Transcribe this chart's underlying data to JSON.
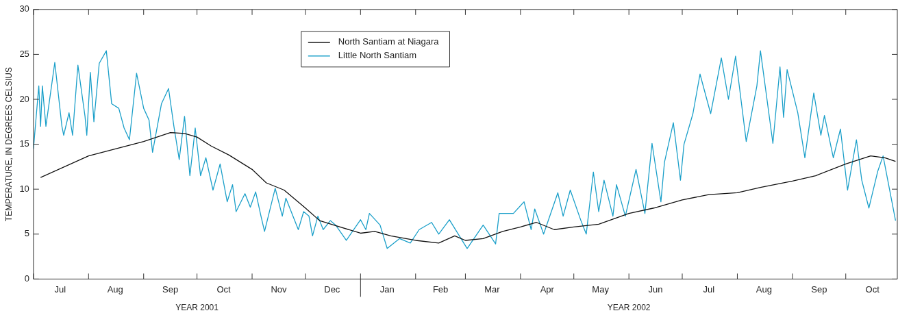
{
  "chart_data": {
    "type": "line",
    "ylabel": "TEMPERATURE, IN DEGREES CELSIUS",
    "legend": "top",
    "xlim": [
      "2001-07-01",
      "2002-10-30"
    ],
    "ylim": [
      0,
      30
    ],
    "yticks": [
      0,
      5,
      10,
      15,
      20,
      25,
      30
    ],
    "xticks": [
      {
        "value": "2001-07-01",
        "label": null
      },
      {
        "value": "2001-07-16",
        "label": "Jul"
      },
      {
        "value": "2001-08-01",
        "label": null
      },
      {
        "value": "2001-08-16",
        "label": "Aug"
      },
      {
        "value": "2001-09-01",
        "label": null
      },
      {
        "value": "2001-09-16",
        "label": "Sep"
      },
      {
        "value": "2001-10-01",
        "label": null
      },
      {
        "value": "2001-10-16",
        "label": "Oct"
      },
      {
        "value": "2001-11-01",
        "label": null
      },
      {
        "value": "2001-11-16",
        "label": "Nov"
      },
      {
        "value": "2001-12-01",
        "label": null
      },
      {
        "value": "2001-12-16",
        "label": "Dec"
      },
      {
        "value": "2002-01-01",
        "label": null
      },
      {
        "value": "2002-01-16",
        "label": "Jan"
      },
      {
        "value": "2002-02-01",
        "label": null
      },
      {
        "value": "2002-02-15",
        "label": "Feb"
      },
      {
        "value": "2002-03-01",
        "label": null
      },
      {
        "value": "2002-03-16",
        "label": "Mar"
      },
      {
        "value": "2002-04-01",
        "label": null
      },
      {
        "value": "2002-04-16",
        "label": "Apr"
      },
      {
        "value": "2002-05-01",
        "label": null
      },
      {
        "value": "2002-05-16",
        "label": "May"
      },
      {
        "value": "2002-06-01",
        "label": null
      },
      {
        "value": "2002-06-16",
        "label": "Jun"
      },
      {
        "value": "2002-07-01",
        "label": null
      },
      {
        "value": "2002-07-16",
        "label": "Jul"
      },
      {
        "value": "2002-08-01",
        "label": null
      },
      {
        "value": "2002-08-16",
        "label": "Aug"
      },
      {
        "value": "2002-09-01",
        "label": null
      },
      {
        "value": "2002-09-16",
        "label": "Sep"
      },
      {
        "value": "2002-10-01",
        "label": null
      },
      {
        "value": "2002-10-16",
        "label": "Oct"
      }
    ],
    "annotations": [
      "YEAR 2001",
      "YEAR 2002"
    ],
    "series": [
      {
        "name": "North Santiam at Niagara",
        "color": "#111111",
        "x": [
          "2001-07-05",
          "2001-08-01",
          "2001-09-01",
          "2001-09-16",
          "2001-09-24",
          "2001-10-01",
          "2001-10-09",
          "2001-10-19",
          "2001-11-01",
          "2001-11-09",
          "2001-11-19",
          "2001-12-01",
          "2001-12-09",
          "2001-12-17",
          "2002-01-01",
          "2002-01-09",
          "2002-01-18",
          "2002-02-01",
          "2002-02-14",
          "2002-02-23",
          "2002-03-01",
          "2002-03-11",
          "2002-03-22",
          "2002-04-01",
          "2002-04-10",
          "2002-04-20",
          "2002-05-01",
          "2002-05-15",
          "2002-06-01",
          "2002-06-15",
          "2002-07-01",
          "2002-07-16",
          "2002-08-01",
          "2002-08-14",
          "2002-09-01",
          "2002-09-14",
          "2002-10-01",
          "2002-10-15",
          "2002-10-23",
          "2002-10-29"
        ],
        "values": [
          11.3,
          13.7,
          15.3,
          16.3,
          16.2,
          15.8,
          14.8,
          13.8,
          12.2,
          10.7,
          9.9,
          7.9,
          6.5,
          6.0,
          5.1,
          5.3,
          4.8,
          4.3,
          4.0,
          4.8,
          4.3,
          4.5,
          5.3,
          5.8,
          6.3,
          5.5,
          5.8,
          6.1,
          7.3,
          7.9,
          8.8,
          9.4,
          9.6,
          10.2,
          10.9,
          11.5,
          12.8,
          13.7,
          13.5,
          13.1
        ]
      },
      {
        "name": "Little North Santiam",
        "color": "#1a9fc9",
        "x": [
          "2001-07-01",
          "2001-07-04",
          "2001-07-05",
          "2001-07-06",
          "2001-07-08",
          "2001-07-13",
          "2001-07-17",
          "2001-07-18",
          "2001-07-21",
          "2001-07-23",
          "2001-07-26",
          "2001-07-30",
          "2001-07-31",
          "2001-08-02",
          "2001-08-04",
          "2001-08-07",
          "2001-08-11",
          "2001-08-14",
          "2001-08-18",
          "2001-08-21",
          "2001-08-24",
          "2001-08-28",
          "2001-09-01",
          "2001-09-04",
          "2001-09-06",
          "2001-09-11",
          "2001-09-15",
          "2001-09-18",
          "2001-09-21",
          "2001-09-24",
          "2001-09-27",
          "2001-09-29",
          "2001-09-30",
          "2001-10-03",
          "2001-10-06",
          "2001-10-10",
          "2001-10-14",
          "2001-10-18",
          "2001-10-21",
          "2001-10-23",
          "2001-10-28",
          "2001-10-31",
          "2001-11-03",
          "2001-11-06",
          "2001-11-08",
          "2001-11-14",
          "2001-11-18",
          "2001-11-20",
          "2001-11-27",
          "2001-11-30",
          "2001-12-03",
          "2001-12-05",
          "2001-12-08",
          "2001-12-11",
          "2001-12-15",
          "2001-12-18",
          "2001-12-24",
          "2002-01-01",
          "2002-01-04",
          "2002-01-06",
          "2002-01-12",
          "2002-01-16",
          "2002-01-23",
          "2002-01-29",
          "2002-02-03",
          "2002-02-10",
          "2002-02-14",
          "2002-02-20",
          "2002-03-02",
          "2002-03-11",
          "2002-03-18",
          "2002-03-20",
          "2002-03-28",
          "2002-04-03",
          "2002-04-07",
          "2002-04-09",
          "2002-04-14",
          "2002-04-22",
          "2002-04-25",
          "2002-04-29",
          "2002-05-05",
          "2002-05-08",
          "2002-05-12",
          "2002-05-15",
          "2002-05-18",
          "2002-05-23",
          "2002-05-25",
          "2002-05-30",
          "2002-06-05",
          "2002-06-10",
          "2002-06-14",
          "2002-06-19",
          "2002-06-21",
          "2002-06-26",
          "2002-06-30",
          "2002-07-02",
          "2002-07-07",
          "2002-07-11",
          "2002-07-17",
          "2002-07-23",
          "2002-07-27",
          "2002-07-31",
          "2002-08-06",
          "2002-08-12",
          "2002-08-14",
          "2002-08-21",
          "2002-08-25",
          "2002-08-27",
          "2002-08-29",
          "2002-09-04",
          "2002-09-08",
          "2002-09-13",
          "2002-09-17",
          "2002-09-19",
          "2002-09-24",
          "2002-09-28",
          "2002-10-02",
          "2002-10-07",
          "2002-10-10",
          "2002-10-14",
          "2002-10-19",
          "2002-10-22",
          "2002-10-29"
        ],
        "values": [
          14.5,
          21.5,
          17,
          21.5,
          17,
          24.1,
          17,
          16,
          18.5,
          16,
          23.8,
          18.1,
          16,
          23,
          17.5,
          24,
          25.4,
          19.5,
          19,
          16.8,
          15.5,
          22.9,
          19,
          17.7,
          14.1,
          19.5,
          21.2,
          17,
          13.3,
          18.1,
          11.5,
          15,
          16.8,
          11.5,
          13.5,
          9.9,
          12.8,
          8.6,
          10.5,
          7.5,
          9.5,
          8,
          9.7,
          7,
          5.3,
          10.1,
          7,
          9,
          5.5,
          7.5,
          7,
          4.8,
          7,
          5.5,
          6.5,
          6,
          4.3,
          6.6,
          5.5,
          7.3,
          6,
          3.4,
          4.5,
          4,
          5.5,
          6.3,
          5,
          6.6,
          3.4,
          6.0,
          3.9,
          7.3,
          7.3,
          8.6,
          5.5,
          7.8,
          5.0,
          9.6,
          7,
          9.9,
          6.5,
          5.0,
          11.9,
          7.5,
          11,
          7,
          10.5,
          7,
          12.2,
          7.3,
          15.1,
          8.6,
          13,
          17.4,
          11.0,
          15,
          18.4,
          22.8,
          18.4,
          24.6,
          20,
          24.8,
          15.3,
          21.5,
          25.4,
          15.1,
          23.6,
          18,
          23.3,
          18.5,
          13.5,
          20.7,
          16,
          18.2,
          13.5,
          16.7,
          9.9,
          15.5,
          11,
          7.9,
          12,
          13.7,
          6.5
        ]
      }
    ]
  }
}
